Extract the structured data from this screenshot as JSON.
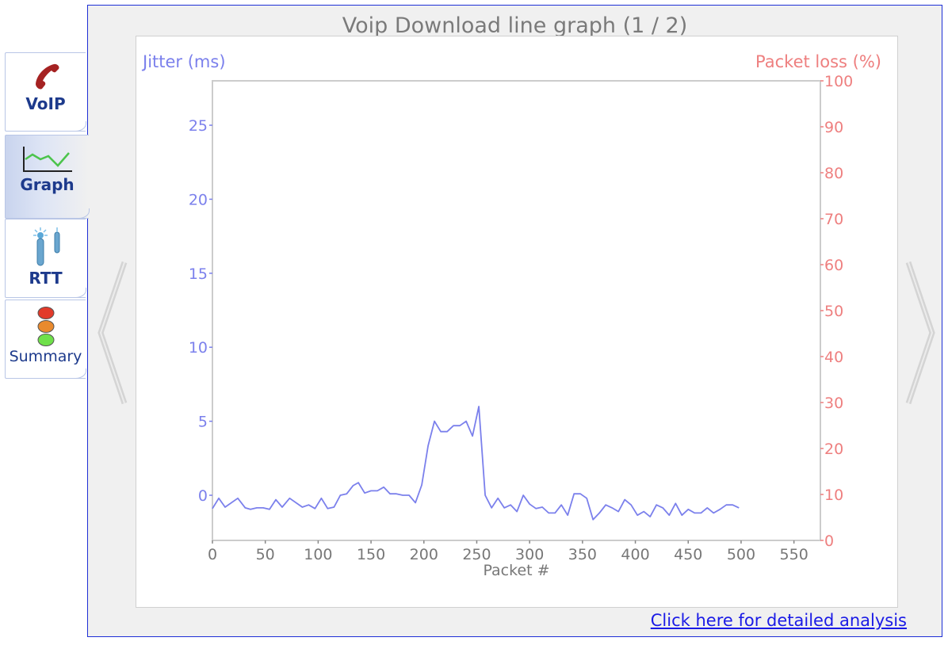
{
  "tabs": [
    {
      "id": "voip",
      "label": "VoIP",
      "icon": "phone-icon",
      "active": false
    },
    {
      "id": "graph",
      "label": "Graph",
      "icon": "line-graph-icon",
      "active": true
    },
    {
      "id": "rtt",
      "label": "RTT",
      "icon": "antenna-icon",
      "active": false
    },
    {
      "id": "summary",
      "label": "Summary",
      "icon": "traffic-light-icon",
      "active": false
    }
  ],
  "panel": {
    "title": "Voip Download line graph (1 / 2)",
    "detail_link": "Click here for detailed analysis"
  },
  "colors": {
    "jitter": "#7b80ec",
    "packet_loss": "#ee7f7f",
    "axis": "#cccccc",
    "x_tick": "#777777",
    "border": "#1e2fd6",
    "link": "#1a1ae6"
  },
  "chart_data": {
    "type": "line",
    "title": "Voip Download line graph (1 / 2)",
    "xlabel": "Packet #",
    "ylabel": "Jitter (ms)",
    "y2label": "Packet loss (%)",
    "xlim": [
      0,
      575
    ],
    "ylim": [
      -3.05,
      28
    ],
    "y2lim": [
      0,
      100
    ],
    "x_ticks": [
      0,
      50,
      100,
      150,
      200,
      250,
      300,
      350,
      400,
      450,
      500,
      550
    ],
    "y_ticks": [
      0,
      5,
      10,
      15,
      20,
      25
    ],
    "y2_ticks": [
      0,
      10,
      20,
      30,
      40,
      50,
      60,
      70,
      80,
      90,
      100
    ],
    "grid": false,
    "series": [
      {
        "name": "Jitter (ms)",
        "axis": "left",
        "x": [
          0,
          6,
          12,
          24,
          31,
          36,
          42,
          48,
          54,
          60,
          66,
          73,
          85,
          91,
          97,
          103,
          109,
          115,
          121,
          127,
          133,
          138,
          144,
          150,
          156,
          162,
          168,
          174,
          180,
          186,
          192,
          198,
          204,
          210,
          216,
          222,
          228,
          234,
          240,
          246,
          252,
          258,
          264,
          270,
          276,
          282,
          288,
          294,
          300,
          306,
          312,
          318,
          324,
          330,
          336,
          342,
          348,
          354,
          360,
          366,
          372,
          378,
          384,
          390,
          396,
          402,
          408,
          414,
          420,
          426,
          432,
          438,
          444,
          450,
          456,
          462,
          468,
          474,
          480,
          486,
          492,
          498
        ],
        "values": [
          -0.9,
          -0.2,
          -0.8,
          -0.2,
          -0.85,
          -0.95,
          -0.85,
          -0.85,
          -0.95,
          -0.3,
          -0.8,
          -0.2,
          -0.8,
          -0.65,
          -0.9,
          -0.2,
          -0.9,
          -0.8,
          0.0,
          0.1,
          0.65,
          0.85,
          0.15,
          0.3,
          0.3,
          0.55,
          0.1,
          0.1,
          0.0,
          0.0,
          -0.5,
          0.7,
          3.35,
          5.0,
          4.3,
          4.3,
          4.7,
          4.7,
          5.0,
          4.0,
          6.0,
          0.0,
          -0.85,
          -0.2,
          -0.85,
          -0.65,
          -1.1,
          0.0,
          -0.6,
          -0.9,
          -0.8,
          -1.2,
          -1.2,
          -0.65,
          -1.35,
          0.1,
          0.1,
          -0.2,
          -1.65,
          -1.2,
          -0.65,
          -0.85,
          -1.1,
          -0.3,
          -0.65,
          -1.35,
          -1.1,
          -1.45,
          -0.65,
          -0.85,
          -1.35,
          -0.55,
          -1.35,
          -0.95,
          -1.2,
          -1.2,
          -0.85,
          -1.2,
          -0.95,
          -0.65,
          -0.65,
          -0.85
        ]
      },
      {
        "name": "Packet loss (%)",
        "axis": "right",
        "x": [],
        "values": []
      }
    ]
  }
}
